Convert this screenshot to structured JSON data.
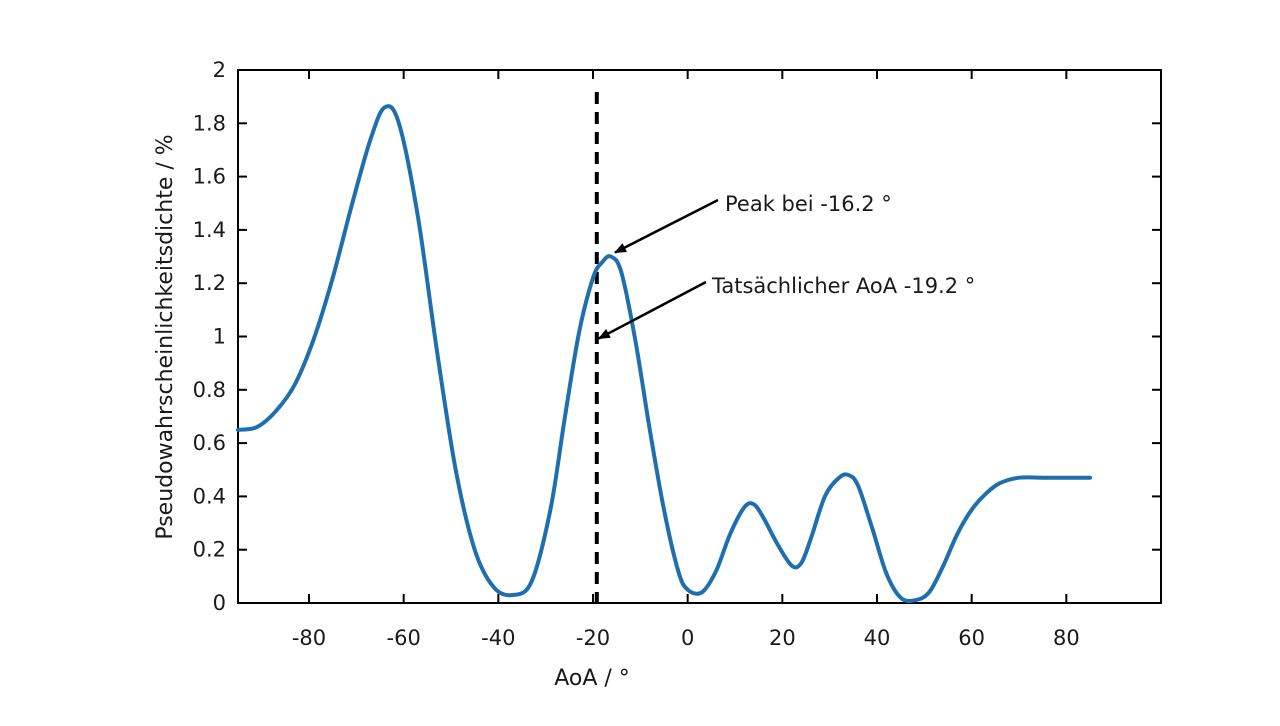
{
  "chart_data": {
    "type": "line",
    "title": "",
    "xlabel": "AoA / °",
    "ylabel": "Pseudowahrscheinlichkeitsdichte / %",
    "xlim": [
      -95,
      100
    ],
    "ylim": [
      0,
      2
    ],
    "x_ticks": [
      -80,
      -60,
      -40,
      -20,
      0,
      20,
      40,
      60,
      80
    ],
    "x_tick_labels": [
      "-80",
      "-60",
      "-40",
      "-20",
      "0",
      "20",
      "40",
      "60",
      "80"
    ],
    "y_ticks": [
      0,
      0.2,
      0.4,
      0.6,
      0.8,
      1,
      1.2,
      1.4,
      1.6,
      1.8,
      2
    ],
    "y_tick_labels": [
      "0",
      "0.2",
      "0.4",
      "0.6",
      "0.8",
      "1",
      "1.2",
      "1.4",
      "1.6",
      "1.8",
      "2"
    ],
    "grid": false,
    "series": [
      {
        "color": "#1f6fae",
        "x": [
          -95,
          -91,
          -87,
          -83,
          -79,
          -75,
          -71,
          -67,
          -64,
          -61,
          -57,
          -53,
          -49,
          -45,
          -41,
          -37,
          -33,
          -29,
          -26,
          -23,
          -20,
          -18,
          -16.2,
          -14,
          -11,
          -8,
          -5,
          -2,
          0,
          3,
          6,
          9,
          12,
          14,
          16,
          19,
          22,
          24,
          26,
          29,
          32,
          34,
          36,
          39,
          42,
          45,
          48,
          51,
          54,
          57,
          60,
          63,
          66,
          70,
          75,
          80,
          85
        ],
        "y": [
          0.65,
          0.66,
          0.72,
          0.82,
          0.99,
          1.22,
          1.49,
          1.74,
          1.86,
          1.8,
          1.45,
          0.95,
          0.5,
          0.2,
          0.06,
          0.03,
          0.08,
          0.35,
          0.69,
          1.01,
          1.22,
          1.28,
          1.3,
          1.24,
          0.98,
          0.65,
          0.35,
          0.12,
          0.05,
          0.04,
          0.12,
          0.26,
          0.36,
          0.37,
          0.32,
          0.22,
          0.14,
          0.15,
          0.24,
          0.4,
          0.47,
          0.48,
          0.44,
          0.28,
          0.11,
          0.02,
          0.01,
          0.04,
          0.14,
          0.26,
          0.35,
          0.41,
          0.45,
          0.47,
          0.47,
          0.47,
          0.47
        ]
      }
    ],
    "vline": {
      "x": -19.2,
      "style": "dashed",
      "color": "#000000"
    },
    "annotations": [
      {
        "text": "Peak bei -16.2 °",
        "target_x": -16.2,
        "target_y": 1.3
      },
      {
        "text": "Tatsächlicher AoA -19.2 °",
        "target_x": -19.2,
        "target_y": 1.0
      }
    ]
  }
}
